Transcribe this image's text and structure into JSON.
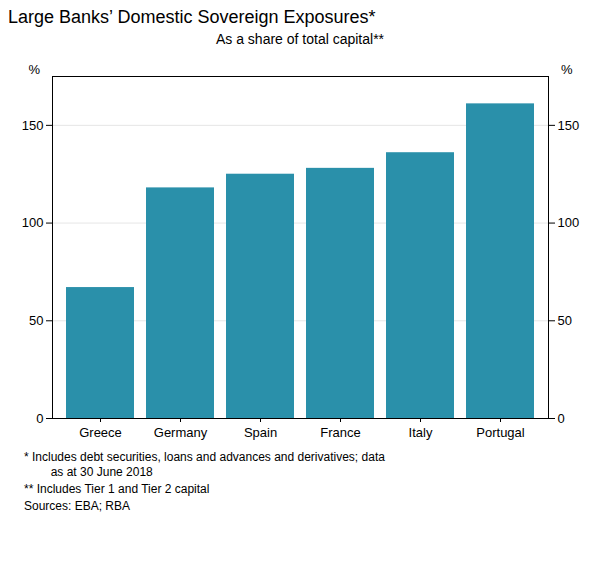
{
  "chart_data": {
    "type": "bar",
    "title": "Large Banks’ Domestic Sovereign Exposures*",
    "subtitle": "As a share of total capital**",
    "categories": [
      "Greece",
      "Germany",
      "Spain",
      "France",
      "Italy",
      "Portugal"
    ],
    "values": [
      67,
      118,
      125,
      128,
      136,
      161
    ],
    "color": "#2a90aa",
    "ylabel": "%",
    "y2label": "%",
    "ylim": [
      0,
      175
    ],
    "yticks": [
      0,
      50,
      100,
      150
    ],
    "y2lim": [
      0,
      175
    ],
    "y2ticks": [
      0,
      50,
      100,
      150
    ],
    "grid": true,
    "annotations": [
      "* Includes debt securities, loans and advances and derivatives; data\n        as at 30 June 2018",
      "** Includes Tier 1 and Tier 2 capital",
      "Sources: EBA; RBA"
    ]
  }
}
